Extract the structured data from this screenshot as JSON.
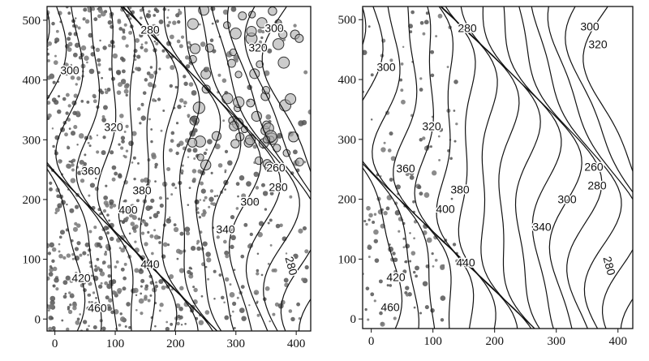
{
  "chart_data": [
    {
      "type": "contour",
      "xlim": [
        -13,
        424
      ],
      "ylim": [
        -20,
        523
      ],
      "xticks": [
        0,
        100,
        200,
        300,
        400
      ],
      "yticks": [
        0,
        100,
        200,
        300,
        400,
        500
      ],
      "contour_labels": [
        280,
        300,
        320,
        300,
        320,
        360,
        380,
        400,
        300,
        340,
        260,
        280,
        440,
        420,
        460,
        280
      ],
      "points": "dense"
    },
    {
      "type": "contour",
      "xlim": [
        -14,
        424
      ],
      "ylim": [
        -16,
        522
      ],
      "xticks": [
        0,
        100,
        200,
        300,
        400
      ],
      "yticks": [
        0,
        100,
        200,
        300,
        400,
        500
      ],
      "contour_labels": [
        280,
        300,
        320,
        300,
        320,
        360,
        380,
        400,
        300,
        340,
        260,
        280,
        440,
        420,
        460,
        280
      ],
      "points": "sparse"
    }
  ]
}
